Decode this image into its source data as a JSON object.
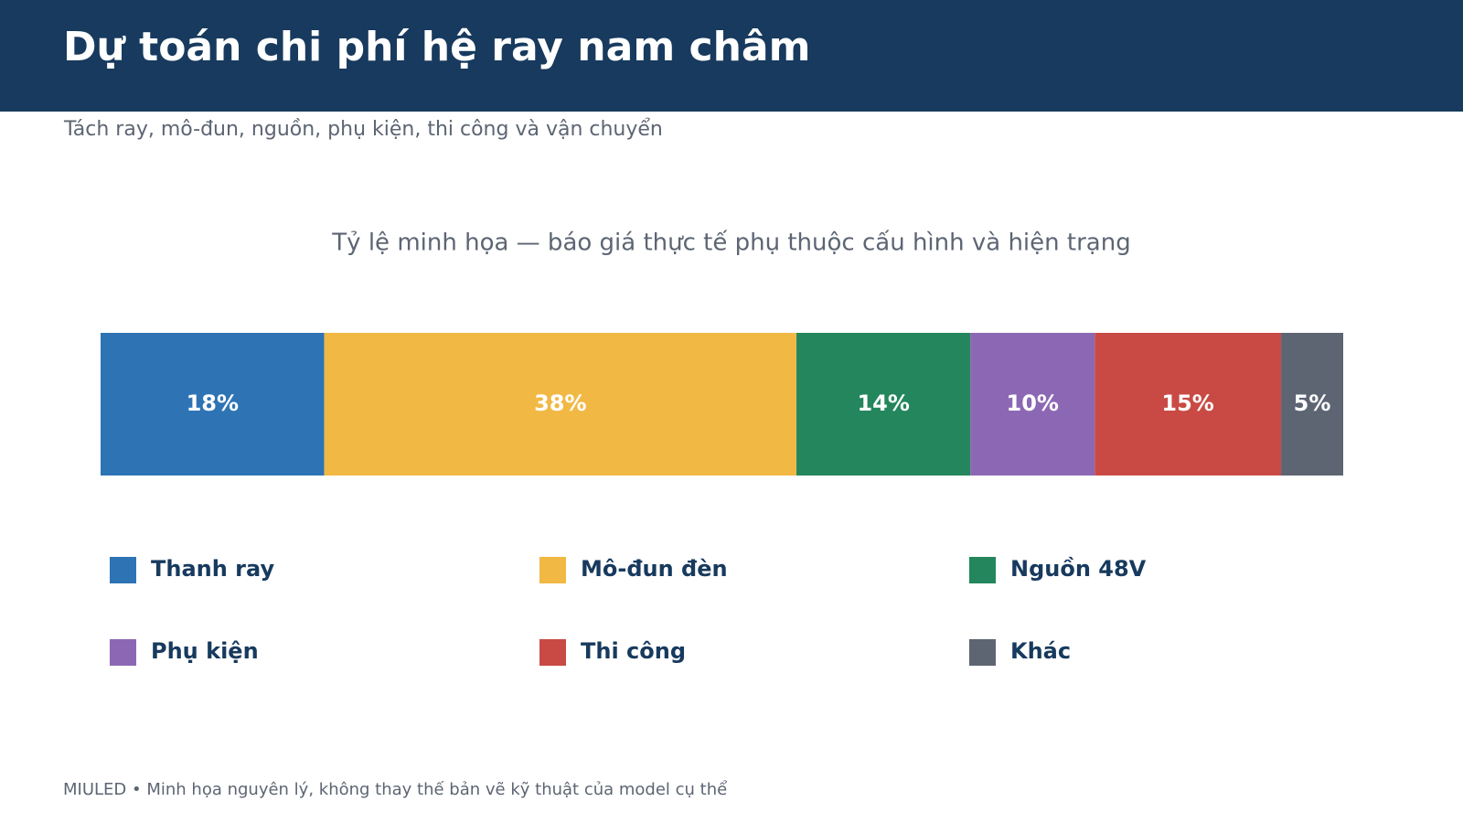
{
  "header": {
    "title": "Dự toán chi phí hệ ray nam châm",
    "subtitle": "Tách ray, mô-đun, nguồn, phụ kiện, thi công và vận chuyển"
  },
  "chart_data": {
    "type": "stacked-bar",
    "orientation": "horizontal",
    "title": "Tỷ lệ minh họa — báo giá thực tế phụ thuộc cấu hình và hiện trạng",
    "xlim": [
      0,
      100
    ],
    "legend": "bottom",
    "series": [
      {
        "name": "Thanh ray",
        "color": "#2e74b5",
        "values": [
          18
        ],
        "value_labels": [
          "18%"
        ]
      },
      {
        "name": "Mô-đun đèn",
        "color": "#f2b844",
        "values": [
          38
        ],
        "value_labels": [
          "38%"
        ]
      },
      {
        "name": "Nguồn 48V",
        "color": "#23865c",
        "values": [
          14
        ],
        "value_labels": [
          "14%"
        ]
      },
      {
        "name": "Phụ kiện",
        "color": "#8c68b4",
        "values": [
          10
        ],
        "value_labels": [
          "10%"
        ]
      },
      {
        "name": "Thi công",
        "color": "#c94a44",
        "values": [
          15
        ],
        "value_labels": [
          "15%"
        ]
      },
      {
        "name": "Khác",
        "color": "#5d6573",
        "values": [
          5
        ],
        "value_labels": [
          "5%"
        ]
      }
    ]
  },
  "footer": "MIULED • Minh họa nguyên lý, không thay thế bản vẽ kỹ thuật của model cụ thể"
}
